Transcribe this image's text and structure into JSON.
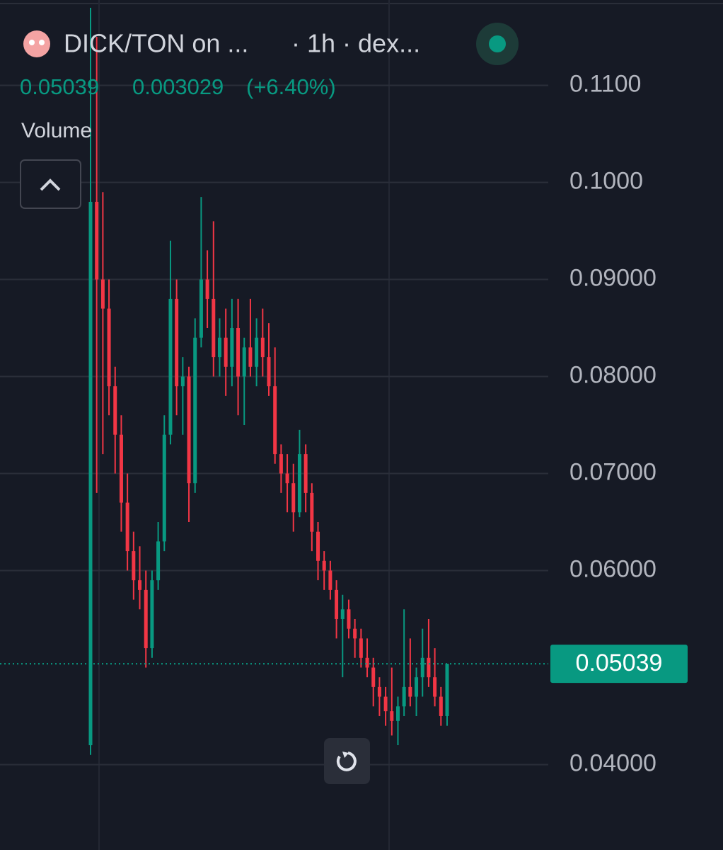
{
  "header": {
    "symbol": "DICK/TON on ...",
    "meta": "· 1h · dex...",
    "change": "0.003029",
    "change_pct": "(+6.40%)",
    "volume_label": "Volume"
  },
  "chart_data": {
    "type": "candlestick",
    "up_color": "#089981",
    "down_color": "#f23645",
    "ylim": [
      0.0312,
      0.1188
    ],
    "yticks": [
      {
        "value": 0.11,
        "label": "0.1100"
      },
      {
        "value": 0.1,
        "label": "0.1000"
      },
      {
        "value": 0.09,
        "label": "0.09000"
      },
      {
        "value": 0.08,
        "label": "0.08000"
      },
      {
        "value": 0.07,
        "label": "0.07000"
      },
      {
        "value": 0.06,
        "label": "0.06000"
      },
      {
        "value": 0.04,
        "label": "0.04000"
      }
    ],
    "grid": true,
    "last_value": 0.05039,
    "open": [
      0.042,
      0.098,
      0.09,
      0.087,
      0.079,
      0.074,
      0.067,
      0.062,
      0.059,
      0.058,
      0.052,
      0.059,
      0.063,
      0.074,
      0.088,
      0.079,
      0.08,
      0.069,
      0.084,
      0.09,
      0.088,
      0.082,
      0.084,
      0.081,
      0.085,
      0.08,
      0.083,
      0.081,
      0.084,
      0.082,
      0.079,
      0.072,
      0.07,
      0.069,
      0.066,
      0.072,
      0.068,
      0.064,
      0.061,
      0.06,
      0.058,
      0.055,
      0.056,
      0.054,
      0.053,
      0.051,
      0.05,
      0.048,
      0.047,
      0.0455,
      0.0445,
      0.046,
      0.048,
      0.047,
      0.049,
      0.051,
      0.049,
      0.047,
      0.045
    ],
    "high": [
      0.118,
      0.115,
      0.099,
      0.09,
      0.081,
      0.076,
      0.07,
      0.064,
      0.0625,
      0.06,
      0.06,
      0.065,
      0.076,
      0.094,
      0.09,
      0.082,
      0.081,
      0.086,
      0.0985,
      0.093,
      0.096,
      0.086,
      0.087,
      0.088,
      0.088,
      0.084,
      0.088,
      0.086,
      0.087,
      0.0855,
      0.083,
      0.073,
      0.072,
      0.071,
      0.0745,
      0.073,
      0.069,
      0.065,
      0.062,
      0.061,
      0.059,
      0.0575,
      0.057,
      0.055,
      0.054,
      0.053,
      0.051,
      0.049,
      0.048,
      0.05,
      0.047,
      0.056,
      0.053,
      0.05,
      0.054,
      0.055,
      0.052,
      0.048,
      0.0504
    ],
    "low": [
      0.041,
      0.068,
      0.072,
      0.076,
      0.07,
      0.064,
      0.06,
      0.057,
      0.056,
      0.05,
      0.051,
      0.058,
      0.062,
      0.073,
      0.076,
      0.074,
      0.065,
      0.068,
      0.083,
      0.085,
      0.08,
      0.08,
      0.078,
      0.079,
      0.076,
      0.075,
      0.08,
      0.079,
      0.08,
      0.078,
      0.071,
      0.068,
      0.066,
      0.064,
      0.0655,
      0.066,
      0.062,
      0.059,
      0.058,
      0.057,
      0.053,
      0.049,
      0.053,
      0.051,
      0.05,
      0.049,
      0.046,
      0.045,
      0.044,
      0.043,
      0.042,
      0.045,
      0.046,
      0.045,
      0.047,
      0.048,
      0.046,
      0.044,
      0.044
    ],
    "close": [
      0.098,
      0.09,
      0.087,
      0.079,
      0.074,
      0.067,
      0.062,
      0.059,
      0.058,
      0.052,
      0.059,
      0.063,
      0.074,
      0.088,
      0.079,
      0.08,
      0.069,
      0.084,
      0.09,
      0.088,
      0.082,
      0.084,
      0.081,
      0.085,
      0.08,
      0.083,
      0.081,
      0.084,
      0.082,
      0.079,
      0.072,
      0.07,
      0.069,
      0.066,
      0.072,
      0.068,
      0.064,
      0.061,
      0.06,
      0.058,
      0.055,
      0.056,
      0.054,
      0.053,
      0.051,
      0.05,
      0.048,
      0.047,
      0.0455,
      0.0445,
      0.046,
      0.048,
      0.047,
      0.049,
      0.051,
      0.049,
      0.047,
      0.045,
      0.05039
    ]
  }
}
